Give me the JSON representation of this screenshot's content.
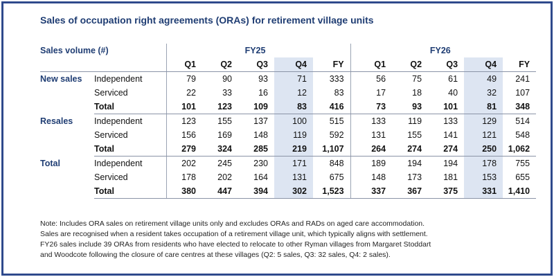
{
  "title": "Sales of occupation right agreements (ORAs) for retirement village units",
  "table": {
    "header_label": "Sales volume (#)",
    "years": [
      "FY25",
      "FY26"
    ],
    "quarters": [
      "Q1",
      "Q2",
      "Q3",
      "Q4",
      "FY"
    ],
    "groups": [
      {
        "label": "New sales",
        "rows": [
          {
            "label": "Independent",
            "fy25": [
              "79",
              "90",
              "93",
              "71",
              "333"
            ],
            "fy26": [
              "56",
              "75",
              "61",
              "49",
              "241"
            ]
          },
          {
            "label": "Serviced",
            "fy25": [
              "22",
              "33",
              "16",
              "12",
              "83"
            ],
            "fy26": [
              "17",
              "18",
              "40",
              "32",
              "107"
            ]
          },
          {
            "label": "Total",
            "fy25": [
              "101",
              "123",
              "109",
              "83",
              "416"
            ],
            "fy26": [
              "73",
              "93",
              "101",
              "81",
              "348"
            ]
          }
        ]
      },
      {
        "label": "Resales",
        "rows": [
          {
            "label": "Independent",
            "fy25": [
              "123",
              "155",
              "137",
              "100",
              "515"
            ],
            "fy26": [
              "133",
              "119",
              "133",
              "129",
              "514"
            ]
          },
          {
            "label": "Serviced",
            "fy25": [
              "156",
              "169",
              "148",
              "119",
              "592"
            ],
            "fy26": [
              "131",
              "155",
              "141",
              "121",
              "548"
            ]
          },
          {
            "label": "Total",
            "fy25": [
              "279",
              "324",
              "285",
              "219",
              "1,107"
            ],
            "fy26": [
              "264",
              "274",
              "274",
              "250",
              "1,062"
            ]
          }
        ]
      },
      {
        "label": "Total",
        "rows": [
          {
            "label": "Independent",
            "fy25": [
              "202",
              "245",
              "230",
              "171",
              "848"
            ],
            "fy26": [
              "189",
              "194",
              "194",
              "178",
              "755"
            ]
          },
          {
            "label": "Serviced",
            "fy25": [
              "178",
              "202",
              "164",
              "131",
              "675"
            ],
            "fy26": [
              "148",
              "173",
              "181",
              "153",
              "655"
            ]
          },
          {
            "label": "Total",
            "fy25": [
              "380",
              "447",
              "394",
              "302",
              "1,523"
            ],
            "fy26": [
              "337",
              "367",
              "375",
              "331",
              "1,410"
            ]
          }
        ]
      }
    ]
  },
  "note": [
    "Note: Includes ORA sales on retirement village units only and excludes ORAs and RADs on aged care accommodation.",
    "Sales are recognised when a resident takes occupation of a retirement village unit, which typically aligns with settlement.",
    "FY26 sales include 39 ORAs from residents who have elected to relocate to other Ryman villages from Margaret Stoddart",
    "and Woodcote following the closure of care centres at these villages (Q2: 5 sales, Q3: 32 sales, Q4: 2 sales)."
  ],
  "colors": {
    "heading": "#1f3d73",
    "q4_highlight": "#dde5f2",
    "frame_border": "#2f4a8c"
  }
}
